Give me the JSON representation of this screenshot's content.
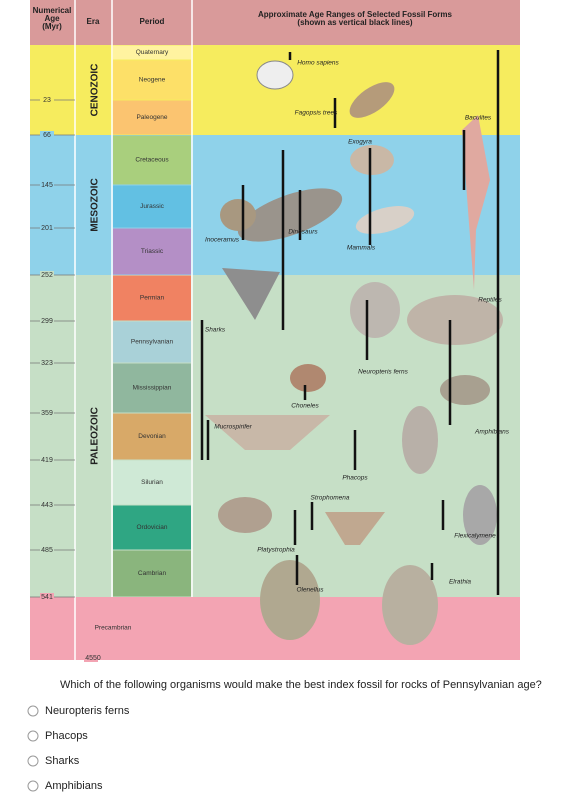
{
  "header": {
    "age_lines": [
      "Numerical",
      "Age",
      "(Myr)"
    ],
    "era": "Era",
    "period": "Period",
    "title_lines": [
      "Approximate Age Ranges of Selected Fossil Forms",
      "(shown as vertical black lines)"
    ]
  },
  "ages": [
    23,
    66,
    145,
    201,
    252,
    299,
    323,
    359,
    419,
    443,
    485,
    541,
    4550
  ],
  "eras": [
    "CENOZOIC",
    "MESOZOIC",
    "PALEOZOIC",
    "Precambrian"
  ],
  "periods": [
    "Quaternary",
    "Neogene",
    "Paleogene",
    "Cretaceous",
    "Jurassic",
    "Triassic",
    "Permian",
    "Pennsylvanian",
    "Mississippian",
    "Devonian",
    "Silurian",
    "Ordovician",
    "Cambrian"
  ],
  "fossils": [
    "Homo sapiens",
    "Fagopsis trees",
    "Exogyra",
    "Baculites",
    "Inoceramus",
    "Dinosaurs",
    "Mammals",
    "Reptiles",
    "Sharks",
    "Neuropteris ferns",
    "Choneles",
    "Mucrospirifer",
    "Amphibians",
    "Phacops",
    "Strophomena",
    "Flexicalymene",
    "Platystrophia",
    "Olenellus",
    "Elrathia"
  ],
  "question": "Which of the following organisms would make the best index fossil for rocks of Pennsylvanian age?",
  "options": [
    "Neuropteris ferns",
    "Phacops",
    "Sharks",
    "Amphibians"
  ]
}
